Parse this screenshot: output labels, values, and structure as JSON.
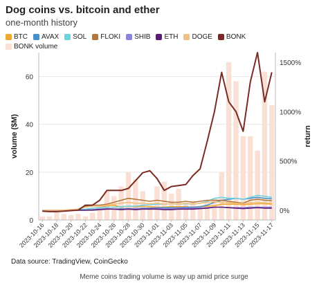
{
  "title": "Dog coins vs. bitcoin and ether",
  "subtitle": "one-month history",
  "source": "Data source: TradingView, CoinGecko",
  "caption": "Meme coins trading volume is way up amid price surge",
  "chart_data": {
    "type": "line",
    "title": "Dog coins vs. bitcoin and ether",
    "subtitle": "one-month history",
    "ylabel_left": "volume ($M)",
    "ylabel_right": "return",
    "ylim_left": [
      0,
      70
    ],
    "ylim_right": [
      -100,
      1600
    ],
    "yticks_left": [
      "0",
      "20",
      "40",
      "60"
    ],
    "yticks_right": [
      "0%",
      "500%",
      "1000%",
      "1500%"
    ],
    "x": [
      "2023-10-16",
      "2023-10-17",
      "2023-10-18",
      "2023-10-19",
      "2023-10-20",
      "2023-10-21",
      "2023-10-22",
      "2023-10-23",
      "2023-10-24",
      "2023-10-25",
      "2023-10-26",
      "2023-10-27",
      "2023-10-28",
      "2023-10-29",
      "2023-10-30",
      "2023-10-31",
      "2023-11-01",
      "2023-11-02",
      "2023-11-03",
      "2023-11-04",
      "2023-11-05",
      "2023-11-06",
      "2023-11-07",
      "2023-11-08",
      "2023-11-09",
      "2023-11-10",
      "2023-11-11",
      "2023-11-12",
      "2023-11-13",
      "2023-11-14",
      "2023-11-15",
      "2023-11-16",
      "2023-11-17"
    ],
    "xtick_labels": [
      "2023-10-16",
      "2023-10-18",
      "2023-10-20",
      "2023-10-22",
      "2023-10-24",
      "2023-10-26",
      "2023-10-28",
      "2023-10-30",
      "2023-11-01",
      "2023-11-03",
      "2023-11-05",
      "2023-11-07",
      "2023-11-09",
      "2023-11-11",
      "2023-11-13",
      "2023-11-15",
      "2023-11-17"
    ],
    "legend_position": "top",
    "grid": "horizontal",
    "bars": {
      "name": "BONK volume",
      "color": "#f9dfd4",
      "values": [
        1.5,
        1.5,
        3.5,
        2.5,
        2,
        2.5,
        1.5,
        3,
        6,
        12,
        10,
        14,
        20,
        17,
        12,
        6,
        14,
        16,
        11,
        13,
        7,
        8,
        6,
        7,
        9,
        20,
        66,
        58,
        35,
        35,
        29,
        62,
        48
      ]
    },
    "series": [
      {
        "name": "BTC",
        "color": "#f0a830",
        "values": [
          0,
          0,
          0,
          0,
          0,
          0,
          5,
          20,
          25,
          45,
          50,
          30,
          40,
          35,
          40,
          35,
          30,
          30,
          35,
          35,
          35,
          30,
          35,
          40,
          45,
          60,
          60,
          60,
          55,
          60,
          65,
          65,
          60
        ]
      },
      {
        "name": "AVAX",
        "color": "#4a90c8",
        "values": [
          0,
          0,
          0,
          0,
          0,
          0,
          0,
          5,
          10,
          15,
          10,
          15,
          15,
          15,
          20,
          20,
          25,
          25,
          25,
          25,
          30,
          30,
          35,
          50,
          80,
          100,
          110,
          120,
          110,
          120,
          130,
          120,
          115
        ]
      },
      {
        "name": "SOL",
        "color": "#6ed3e0",
        "values": [
          0,
          0,
          0,
          0,
          0,
          5,
          10,
          20,
          25,
          30,
          30,
          35,
          40,
          40,
          50,
          55,
          60,
          60,
          65,
          60,
          65,
          60,
          70,
          90,
          120,
          130,
          120,
          120,
          110,
          130,
          150,
          140,
          130
        ]
      },
      {
        "name": "FLOKI",
        "color": "#b5763a",
        "values": [
          0,
          0,
          0,
          0,
          5,
          10,
          40,
          50,
          50,
          60,
          80,
          100,
          120,
          110,
          100,
          90,
          100,
          90,
          80,
          80,
          90,
          80,
          90,
          100,
          100,
          100,
          90,
          80,
          70,
          100,
          110,
          100,
          95
        ]
      },
      {
        "name": "SHIB",
        "color": "#8a85d8",
        "values": [
          0,
          0,
          0,
          0,
          0,
          0,
          0,
          5,
          10,
          15,
          10,
          10,
          15,
          15,
          15,
          15,
          20,
          15,
          15,
          20,
          20,
          20,
          20,
          25,
          30,
          30,
          25,
          25,
          25,
          30,
          30,
          30,
          30
        ]
      },
      {
        "name": "ETH",
        "color": "#5a1a78",
        "values": [
          0,
          0,
          0,
          0,
          0,
          0,
          0,
          0,
          5,
          10,
          10,
          5,
          10,
          5,
          10,
          10,
          10,
          5,
          5,
          10,
          10,
          10,
          15,
          20,
          30,
          30,
          25,
          20,
          15,
          20,
          25,
          20,
          20
        ]
      },
      {
        "name": "DOGE",
        "color": "#f0c080",
        "values": [
          0,
          0,
          0,
          0,
          5,
          10,
          30,
          40,
          40,
          50,
          60,
          70,
          80,
          70,
          70,
          65,
          70,
          60,
          65,
          60,
          70,
          60,
          70,
          80,
          85,
          80,
          75,
          70,
          65,
          75,
          80,
          75,
          70
        ]
      },
      {
        "name": "BONK",
        "color": "#7a2a22",
        "values": [
          -10,
          -15,
          -15,
          -10,
          -5,
          0,
          50,
          50,
          100,
          200,
          200,
          200,
          220,
          300,
          380,
          400,
          320,
          200,
          240,
          250,
          260,
          350,
          420,
          700,
          1000,
          1400,
          1100,
          1000,
          800,
          1300,
          1600,
          1100,
          1400
        ]
      }
    ]
  }
}
